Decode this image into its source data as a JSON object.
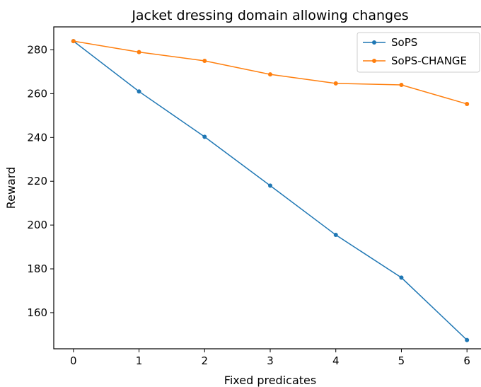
{
  "chart_data": {
    "type": "line",
    "title": "Jacket dressing domain allowing changes",
    "xlabel": "Fixed predicates",
    "ylabel": "Reward",
    "x": [
      0,
      1,
      2,
      3,
      4,
      5,
      6
    ],
    "xlim": [
      -0.3,
      6.3
    ],
    "ylim": [
      143.5,
      290.5
    ],
    "xticks": [
      0,
      1,
      2,
      3,
      4,
      5,
      6
    ],
    "yticks": [
      160,
      180,
      200,
      220,
      240,
      260,
      280
    ],
    "grid": false,
    "legend_position": "top-right",
    "series": [
      {
        "name": "SoPS",
        "color": "#1f77b4",
        "values": [
          284,
          261,
          240.3,
          218,
          195.5,
          176,
          147.5
        ]
      },
      {
        "name": "SoPS-CHANGE",
        "color": "#ff7f0e",
        "values": [
          284,
          279,
          275,
          268.8,
          264.7,
          264,
          255.3
        ]
      }
    ]
  }
}
